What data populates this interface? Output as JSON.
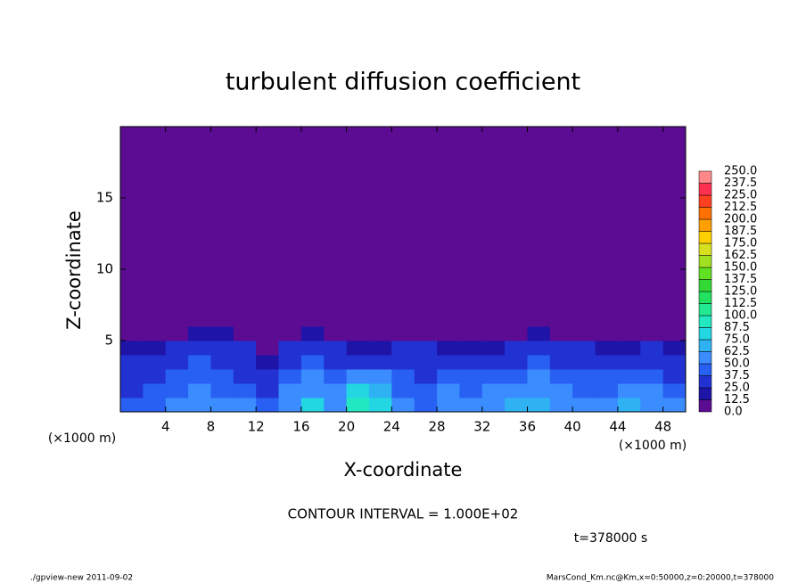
{
  "chart_data": {
    "type": "contour",
    "title": "turbulent diffusion coefficient",
    "xlabel": "X-coordinate",
    "ylabel": "Z-coordinate",
    "x_unit": "(×1000 m)",
    "annotation": "CONTOUR INTERVAL = 1.000E+02",
    "time": "t=378000 s",
    "footer_left": "./gpview-new  2011-09-02",
    "footer_right": "MarsCond_Km.nc@Km,x=0:50000,z=0:20000,t=378000",
    "xlim": [
      0,
      50
    ],
    "ylim": [
      0,
      20
    ],
    "xticks": [
      4,
      8,
      12,
      16,
      20,
      24,
      28,
      32,
      36,
      40,
      44,
      48
    ],
    "yticks": [
      5,
      10,
      15
    ],
    "x_edges": [
      0,
      2,
      4,
      6,
      8,
      10,
      12,
      14,
      16,
      18,
      20,
      22,
      24,
      26,
      28,
      30,
      32,
      34,
      36,
      38,
      40,
      42,
      44,
      46,
      48,
      50
    ],
    "y_edges": [
      0,
      1,
      2,
      3,
      4,
      5,
      6,
      20
    ],
    "values": [
      [
        40,
        45,
        50,
        55,
        60,
        50,
        45,
        55,
        75,
        60,
        90,
        80,
        50,
        45,
        60,
        50,
        55,
        65,
        70,
        60,
        55,
        50,
        70,
        60,
        50
      ],
      [
        35,
        40,
        45,
        50,
        45,
        40,
        35,
        50,
        60,
        55,
        75,
        65,
        45,
        40,
        50,
        45,
        50,
        55,
        60,
        50,
        45,
        45,
        55,
        50,
        45
      ],
      [
        30,
        35,
        40,
        45,
        40,
        35,
        30,
        45,
        50,
        45,
        55,
        50,
        40,
        35,
        45,
        40,
        40,
        45,
        50,
        45,
        40,
        40,
        45,
        40,
        35
      ],
      [
        25,
        30,
        35,
        40,
        35,
        30,
        20,
        35,
        40,
        35,
        35,
        30,
        35,
        30,
        35,
        30,
        30,
        35,
        40,
        35,
        30,
        30,
        35,
        35,
        30
      ],
      [
        20,
        20,
        25,
        30,
        30,
        25,
        10,
        25,
        30,
        25,
        20,
        15,
        25,
        25,
        20,
        15,
        15,
        25,
        30,
        25,
        25,
        20,
        20,
        25,
        20
      ],
      [
        10,
        8,
        10,
        20,
        20,
        10,
        5,
        5,
        15,
        10,
        10,
        5,
        5,
        8,
        10,
        5,
        5,
        10,
        15,
        10,
        8,
        5,
        5,
        8,
        10
      ],
      [
        3,
        3,
        3,
        3,
        3,
        3,
        3,
        3,
        3,
        3,
        3,
        3,
        3,
        3,
        3,
        3,
        3,
        3,
        3,
        3,
        3,
        3,
        3,
        3,
        3
      ]
    ],
    "levels": [
      {
        "value": 0,
        "label": "0.0"
      },
      {
        "value": 12.5,
        "label": "12.5"
      },
      {
        "value": 25,
        "label": "25.0"
      },
      {
        "value": 37.5,
        "label": "37.5"
      },
      {
        "value": 50,
        "label": "50.0"
      },
      {
        "value": 62.5,
        "label": "62.5"
      },
      {
        "value": 75,
        "label": "75.0"
      },
      {
        "value": 87.5,
        "label": "87.5"
      },
      {
        "value": 100,
        "label": "100.0"
      },
      {
        "value": 112.5,
        "label": "112.5"
      },
      {
        "value": 125,
        "label": "125.0"
      },
      {
        "value": 137.5,
        "label": "137.5"
      },
      {
        "value": 150,
        "label": "150.0"
      },
      {
        "value": 162.5,
        "label": "162.5"
      },
      {
        "value": 175,
        "label": "175.0"
      },
      {
        "value": 187.5,
        "label": "187.5"
      },
      {
        "value": 200,
        "label": "200.0"
      },
      {
        "value": 212.5,
        "label": "212.5"
      },
      {
        "value": 225,
        "label": "225.0"
      },
      {
        "value": 237.5,
        "label": "237.5"
      },
      {
        "value": 250,
        "label": "250.0"
      }
    ],
    "colors": [
      "#5c0b93",
      "#1e14a8",
      "#2232d2",
      "#2760f2",
      "#3a8cff",
      "#2fb2f2",
      "#22d6e2",
      "#22e8c2",
      "#22e892",
      "#22e060",
      "#34d834",
      "#62e022",
      "#a2e022",
      "#d8e022",
      "#ffd000",
      "#ffa000",
      "#ff7000",
      "#ff4020",
      "#ff3050",
      "#ff8888"
    ]
  }
}
